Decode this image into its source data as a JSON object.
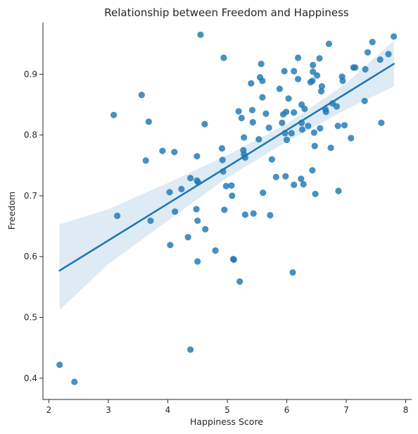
{
  "chart_data": {
    "type": "scatter",
    "title": "Relationship between Freedom and Happiness",
    "xlabel": "Happiness Score",
    "ylabel": "Freedom",
    "xlim": [
      1.9,
      8.1
    ],
    "ylim": [
      0.365,
      0.985
    ],
    "xticks": [
      2,
      3,
      4,
      5,
      6,
      7,
      8
    ],
    "yticks": [
      0.4,
      0.5,
      0.6,
      0.7,
      0.8,
      0.9
    ],
    "grid": false,
    "colors": {
      "points": "#1f77b4",
      "line": "#1f77b4",
      "band": "#1f77b4"
    },
    "regression": {
      "x_start": 2.18,
      "y_start": 0.577,
      "x_end": 7.8,
      "y_end": 0.917,
      "band_lower": [
        [
          2.18,
          0.512
        ],
        [
          3.0,
          0.588
        ],
        [
          4.0,
          0.659
        ],
        [
          5.0,
          0.73
        ],
        [
          6.0,
          0.789
        ],
        [
          7.0,
          0.842
        ],
        [
          7.8,
          0.88
        ]
      ],
      "band_upper": [
        [
          2.18,
          0.653
        ],
        [
          3.0,
          0.678
        ],
        [
          4.0,
          0.721
        ],
        [
          5.0,
          0.767
        ],
        [
          6.0,
          0.818
        ],
        [
          7.0,
          0.885
        ],
        [
          7.8,
          0.955
        ]
      ]
    },
    "points": [
      [
        2.18,
        0.422
      ],
      [
        2.43,
        0.394
      ],
      [
        3.09,
        0.833
      ],
      [
        3.15,
        0.667
      ],
      [
        3.56,
        0.866
      ],
      [
        3.63,
        0.758
      ],
      [
        3.68,
        0.822
      ],
      [
        3.71,
        0.659
      ],
      [
        3.91,
        0.774
      ],
      [
        4.03,
        0.706
      ],
      [
        4.04,
        0.619
      ],
      [
        4.11,
        0.772
      ],
      [
        4.12,
        0.674
      ],
      [
        4.23,
        0.711
      ],
      [
        4.34,
        0.632
      ],
      [
        4.38,
        0.447
      ],
      [
        4.38,
        0.729
      ],
      [
        4.48,
        0.678
      ],
      [
        4.49,
        0.765
      ],
      [
        4.49,
        0.725
      ],
      [
        4.5,
        0.659
      ],
      [
        4.5,
        0.592
      ],
      [
        4.51,
        0.722
      ],
      [
        4.55,
        0.965
      ],
      [
        4.62,
        0.818
      ],
      [
        4.63,
        0.645
      ],
      [
        4.8,
        0.61
      ],
      [
        4.91,
        0.778
      ],
      [
        4.92,
        0.759
      ],
      [
        4.93,
        0.74
      ],
      [
        4.94,
        0.927
      ],
      [
        4.95,
        0.677
      ],
      [
        4.98,
        0.716
      ],
      [
        5.07,
        0.717
      ],
      [
        5.08,
        0.7
      ],
      [
        5.1,
        0.596
      ],
      [
        5.11,
        0.595
      ],
      [
        5.19,
        0.839
      ],
      [
        5.21,
        0.559
      ],
      [
        5.24,
        0.828
      ],
      [
        5.27,
        0.775
      ],
      [
        5.28,
        0.796
      ],
      [
        5.28,
        0.768
      ],
      [
        5.3,
        0.763
      ],
      [
        5.3,
        0.669
      ],
      [
        5.4,
        0.885
      ],
      [
        5.42,
        0.841
      ],
      [
        5.43,
        0.821
      ],
      [
        5.44,
        0.671
      ],
      [
        5.53,
        0.793
      ],
      [
        5.55,
        0.895
      ],
      [
        5.57,
        0.917
      ],
      [
        5.59,
        0.862
      ],
      [
        5.59,
        0.889
      ],
      [
        5.6,
        0.705
      ],
      [
        5.65,
        0.835
      ],
      [
        5.7,
        0.812
      ],
      [
        5.72,
        0.668
      ],
      [
        5.75,
        0.76
      ],
      [
        5.82,
        0.731
      ],
      [
        5.88,
        0.876
      ],
      [
        5.92,
        0.82
      ],
      [
        5.94,
        0.834
      ],
      [
        5.96,
        0.905
      ],
      [
        5.97,
        0.803
      ],
      [
        5.98,
        0.732
      ],
      [
        5.99,
        0.838
      ],
      [
        6.0,
        0.792
      ],
      [
        6.03,
        0.86
      ],
      [
        6.08,
        0.803
      ],
      [
        6.1,
        0.574
      ],
      [
        6.12,
        0.905
      ],
      [
        6.12,
        0.837
      ],
      [
        6.12,
        0.718
      ],
      [
        6.19,
        0.927
      ],
      [
        6.19,
        0.892
      ],
      [
        6.24,
        0.728
      ],
      [
        6.25,
        0.85
      ],
      [
        6.25,
        0.82
      ],
      [
        6.26,
        0.809
      ],
      [
        6.28,
        0.719
      ],
      [
        6.3,
        0.843
      ],
      [
        6.36,
        0.815
      ],
      [
        6.4,
        0.887
      ],
      [
        6.43,
        0.889
      ],
      [
        6.43,
        0.742
      ],
      [
        6.44,
        0.915
      ],
      [
        6.44,
        0.904
      ],
      [
        6.46,
        0.804
      ],
      [
        6.47,
        0.782
      ],
      [
        6.48,
        0.703
      ],
      [
        6.51,
        0.898
      ],
      [
        6.55,
        0.926
      ],
      [
        6.56,
        0.811
      ],
      [
        6.58,
        0.872
      ],
      [
        6.59,
        0.88
      ],
      [
        6.65,
        0.842
      ],
      [
        6.66,
        0.838
      ],
      [
        6.71,
        0.95
      ],
      [
        6.74,
        0.779
      ],
      [
        6.77,
        0.852
      ],
      [
        6.84,
        0.847
      ],
      [
        6.86,
        0.815
      ],
      [
        6.87,
        0.708
      ],
      [
        6.93,
        0.896
      ],
      [
        6.94,
        0.889
      ],
      [
        6.97,
        0.816
      ],
      [
        7.08,
        0.795
      ],
      [
        7.12,
        0.911
      ],
      [
        7.15,
        0.911
      ],
      [
        7.31,
        0.856
      ],
      [
        7.32,
        0.908
      ],
      [
        7.36,
        0.936
      ],
      [
        7.44,
        0.953
      ],
      [
        7.57,
        0.924
      ],
      [
        7.59,
        0.82
      ],
      [
        7.71,
        0.933
      ],
      [
        7.8,
        0.962
      ]
    ]
  }
}
